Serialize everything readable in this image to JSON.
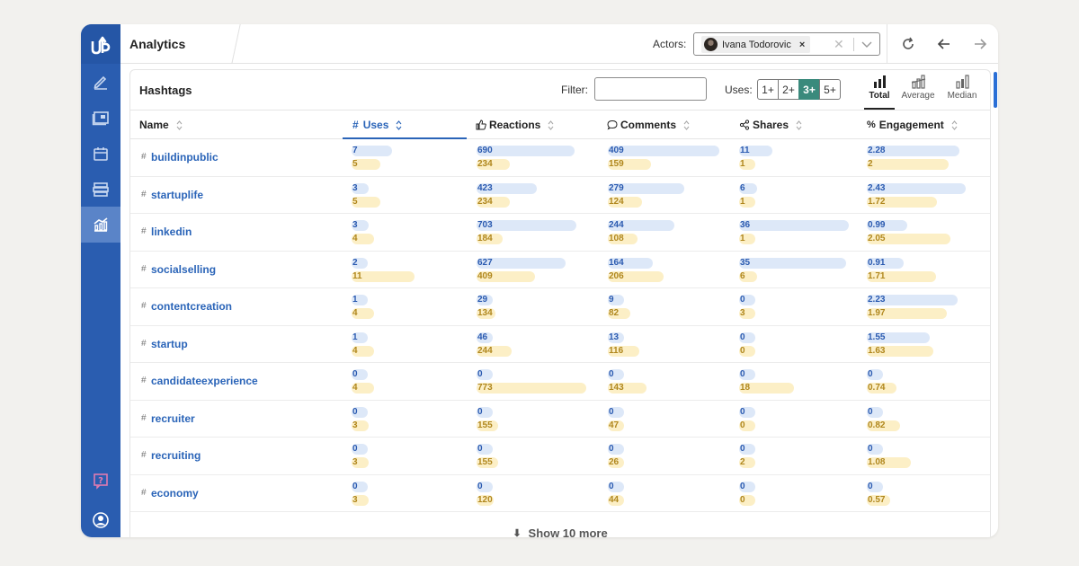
{
  "header": {
    "title": "Analytics",
    "actors_label": "Actors:",
    "actor_name": "Ivana Todorovic"
  },
  "panel": {
    "title": "Hashtags",
    "filter_label": "Filter:",
    "filter_value": "",
    "uses_label": "Uses:",
    "uses_options": [
      "1+",
      "2+",
      "3+",
      "5+"
    ],
    "uses_selected": "3+",
    "views": [
      "Total",
      "Average",
      "Median"
    ],
    "view_selected": "Total"
  },
  "columns": [
    {
      "label": "Name",
      "icon": ""
    },
    {
      "label": "Uses",
      "icon": "#"
    },
    {
      "label": "Reactions",
      "icon": "thumbs-up"
    },
    {
      "label": "Comments",
      "icon": "comment"
    },
    {
      "label": "Shares",
      "icon": "share"
    },
    {
      "label": "Engagement",
      "icon": "percent"
    }
  ],
  "sorted_column": "Uses",
  "colors": {
    "sidebar": "#2a5db0",
    "link": "#2a64b8",
    "bar_blue": "#dde8f8",
    "bar_yellow": "#fcefc6",
    "active_toggle": "#3a8a7c"
  },
  "rows": [
    {
      "tag": "buildinpublic",
      "uses": [
        "7",
        "5"
      ],
      "reactions": [
        "690",
        "234"
      ],
      "comments": [
        "409",
        "159"
      ],
      "shares": [
        "11",
        "1"
      ],
      "engagement": [
        "2.28",
        "2"
      ]
    },
    {
      "tag": "startuplife",
      "uses": [
        "3",
        "5"
      ],
      "reactions": [
        "423",
        "234"
      ],
      "comments": [
        "279",
        "124"
      ],
      "shares": [
        "6",
        "1"
      ],
      "engagement": [
        "2.43",
        "1.72"
      ]
    },
    {
      "tag": "linkedin",
      "uses": [
        "3",
        "4"
      ],
      "reactions": [
        "703",
        "184"
      ],
      "comments": [
        "244",
        "108"
      ],
      "shares": [
        "36",
        "1"
      ],
      "engagement": [
        "0.99",
        "2.05"
      ]
    },
    {
      "tag": "socialselling",
      "uses": [
        "2",
        "11"
      ],
      "reactions": [
        "627",
        "409"
      ],
      "comments": [
        "164",
        "206"
      ],
      "shares": [
        "35",
        "6"
      ],
      "engagement": [
        "0.91",
        "1.71"
      ]
    },
    {
      "tag": "contentcreation",
      "uses": [
        "1",
        "4"
      ],
      "reactions": [
        "29",
        "134"
      ],
      "comments": [
        "9",
        "82"
      ],
      "shares": [
        "0",
        "3"
      ],
      "engagement": [
        "2.23",
        "1.97"
      ]
    },
    {
      "tag": "startup",
      "uses": [
        "1",
        "4"
      ],
      "reactions": [
        "46",
        "244"
      ],
      "comments": [
        "13",
        "116"
      ],
      "shares": [
        "0",
        "0"
      ],
      "engagement": [
        "1.55",
        "1.63"
      ]
    },
    {
      "tag": "candidateexperience",
      "uses": [
        "0",
        "4"
      ],
      "reactions": [
        "0",
        "773"
      ],
      "comments": [
        "0",
        "143"
      ],
      "shares": [
        "0",
        "18"
      ],
      "engagement": [
        "0",
        "0.74"
      ]
    },
    {
      "tag": "recruiter",
      "uses": [
        "0",
        "3"
      ],
      "reactions": [
        "0",
        "155"
      ],
      "comments": [
        "0",
        "47"
      ],
      "shares": [
        "0",
        "0"
      ],
      "engagement": [
        "0",
        "0.82"
      ]
    },
    {
      "tag": "recruiting",
      "uses": [
        "0",
        "3"
      ],
      "reactions": [
        "0",
        "155"
      ],
      "comments": [
        "0",
        "26"
      ],
      "shares": [
        "0",
        "2"
      ],
      "engagement": [
        "0",
        "1.08"
      ]
    },
    {
      "tag": "economy",
      "uses": [
        "0",
        "3"
      ],
      "reactions": [
        "0",
        "120"
      ],
      "comments": [
        "0",
        "44"
      ],
      "shares": [
        "0",
        "0"
      ],
      "engagement": [
        "0",
        "0.57"
      ]
    }
  ],
  "show_more": "Show 10 more"
}
